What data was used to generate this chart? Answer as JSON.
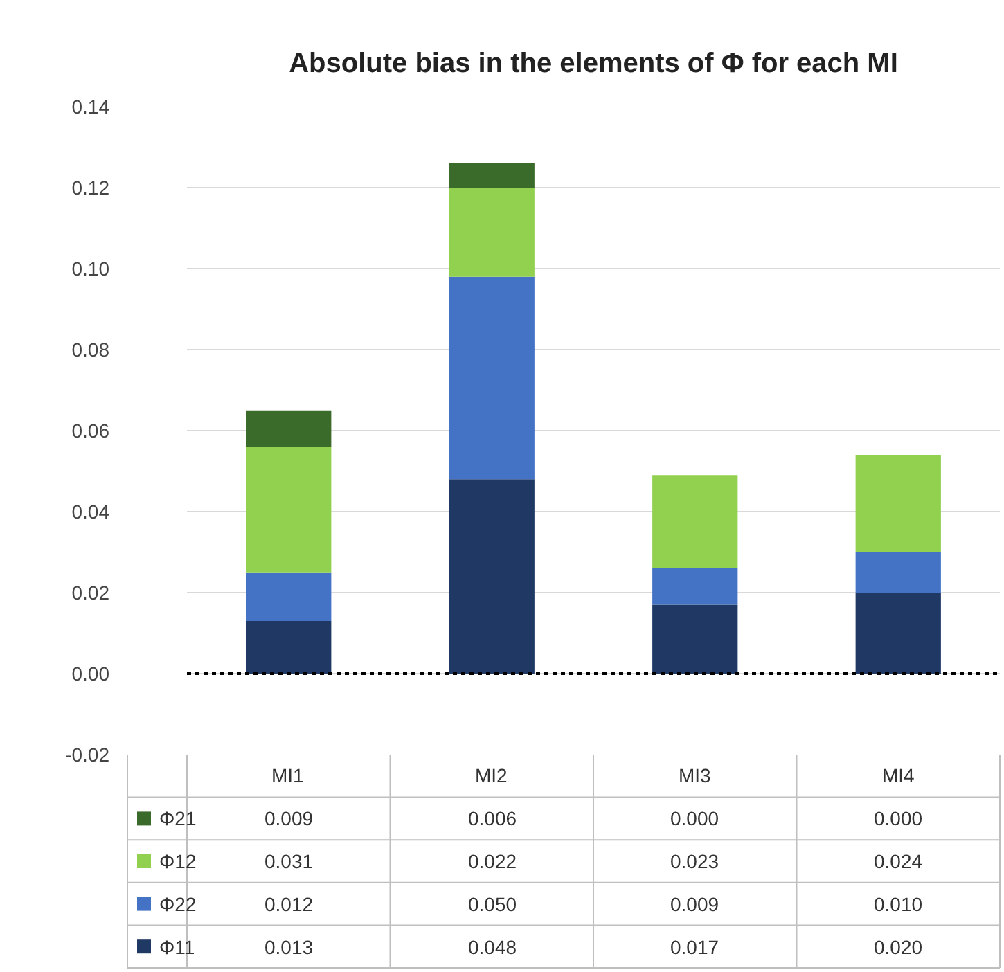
{
  "chart_data": {
    "type": "bar",
    "title": "Absolute bias in the elements of Φ for each MI",
    "stacked": true,
    "categories": [
      "MI1",
      "MI2",
      "MI3",
      "MI4"
    ],
    "series": [
      {
        "name": "Φ11",
        "color": "#203864",
        "values": [
          0.013,
          0.048,
          0.017,
          0.02
        ],
        "value_labels": [
          "0.013",
          "0.048",
          "0.017",
          "0.020"
        ]
      },
      {
        "name": "Φ22",
        "color": "#4472c4",
        "values": [
          0.012,
          0.05,
          0.009,
          0.01
        ],
        "value_labels": [
          "0.012",
          "0.050",
          "0.009",
          "0.010"
        ]
      },
      {
        "name": "Φ12",
        "color": "#92d050",
        "values": [
          0.031,
          0.022,
          0.023,
          0.024
        ],
        "value_labels": [
          "0.031",
          "0.022",
          "0.023",
          "0.024"
        ]
      },
      {
        "name": "Φ21",
        "color": "#3b6b2b",
        "values": [
          0.009,
          0.006,
          0.0,
          0.0
        ],
        "value_labels": [
          "0.009",
          "0.006",
          "0.000",
          "0.000"
        ]
      }
    ],
    "ylim": [
      -0.02,
      0.14
    ],
    "yticks": [
      {
        "value": -0.02,
        "label": "-0.02"
      },
      {
        "value": 0,
        "label": "0.00"
      },
      {
        "value": 0.02,
        "label": "0.02"
      },
      {
        "value": 0.04,
        "label": "0.04"
      },
      {
        "value": 0.06,
        "label": "0.06"
      },
      {
        "value": 0.08,
        "label": "0.08"
      },
      {
        "value": 0.1,
        "label": "0.10"
      },
      {
        "value": 0.12,
        "label": "0.12"
      },
      {
        "value": 0.14,
        "label": "0.14"
      }
    ],
    "grid": "y",
    "legend": "bottom",
    "ref_lines": [
      {
        "axis": "y",
        "value": 0,
        "label": null,
        "color": "#000000",
        "line_style": "dotted"
      }
    ]
  }
}
